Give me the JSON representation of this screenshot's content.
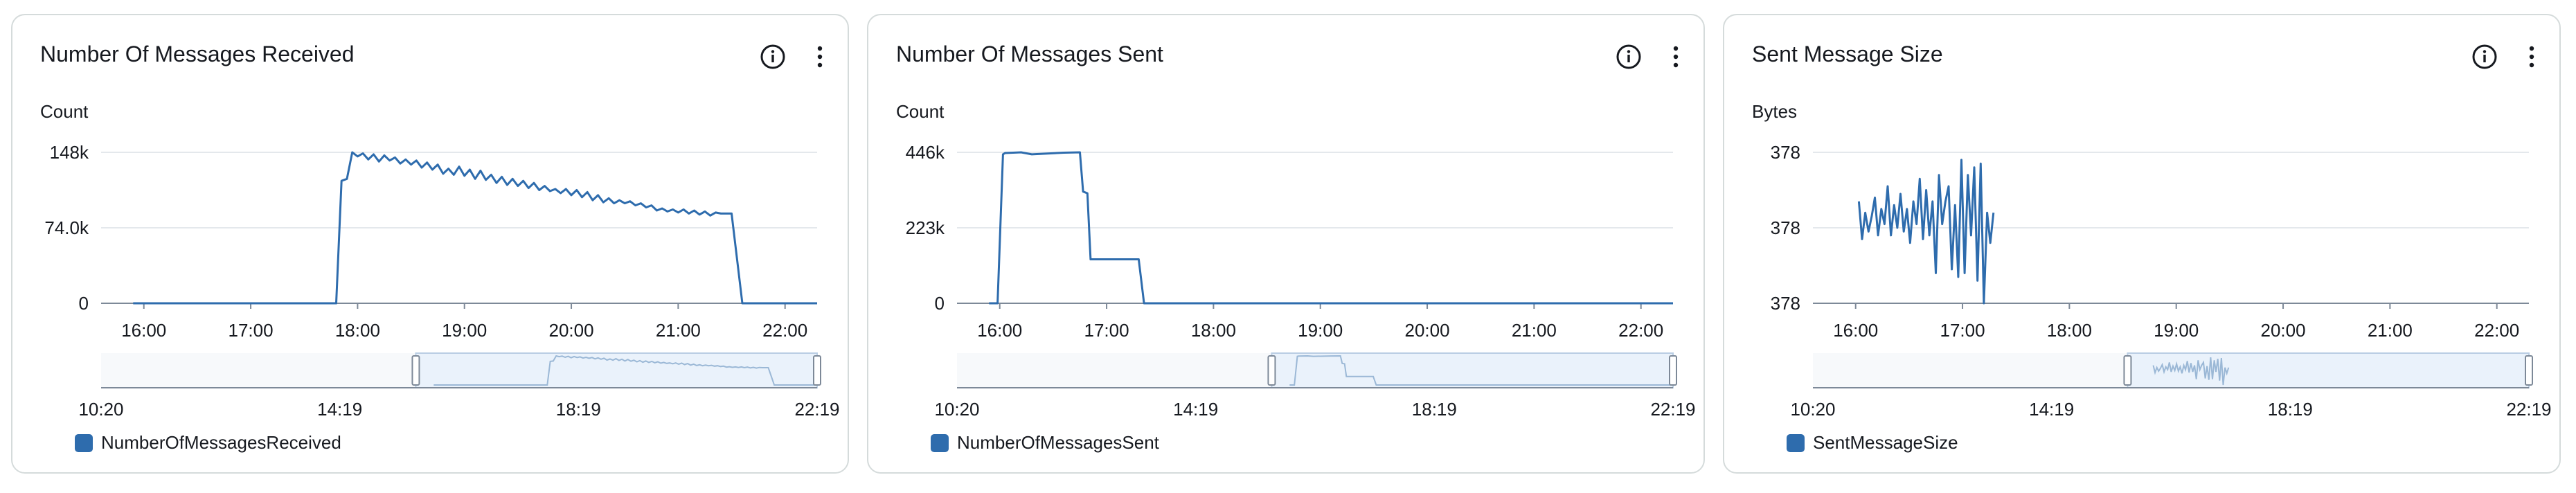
{
  "colors": {
    "series": "#2e6cad",
    "axis": "#7d8998",
    "grid": "#e4e8ec",
    "navigator_fill": "#eaf2fb",
    "navigator_border": "#b9cde3"
  },
  "panels": [
    {
      "title": "Number Of Messages Received",
      "info_icon": "info-circle-icon",
      "menu_icon": "vertical-ellipsis-icon",
      "legend": "NumberOfMessagesReceived"
    },
    {
      "title": "Number Of Messages Sent",
      "info_icon": "info-circle-icon",
      "menu_icon": "vertical-ellipsis-icon",
      "legend": "NumberOfMessagesSent"
    },
    {
      "title": "Sent Message Size",
      "info_icon": "info-circle-icon",
      "menu_icon": "vertical-ellipsis-icon",
      "legend": "SentMessageSize"
    }
  ],
  "chart_data": [
    {
      "type": "line",
      "ylabel": "Count",
      "ylim": [
        0,
        148000
      ],
      "y_ticks": [
        0,
        74000,
        148000
      ],
      "y_tick_labels": [
        "0",
        "74.0k",
        "148k"
      ],
      "xlim": [
        15.6,
        22.3
      ],
      "x_ticks": [
        16,
        17,
        18,
        19,
        20,
        21,
        22
      ],
      "x_tick_labels": [
        "16:00",
        "17:00",
        "18:00",
        "19:00",
        "20:00",
        "21:00",
        "22:00"
      ],
      "grid": true,
      "navigator": {
        "labels": [
          "10:20",
          "14:19",
          "18:19",
          "22:19"
        ],
        "range_labels": [
          10.333,
          22.317
        ],
        "window": [
          15.6,
          22.317
        ]
      },
      "series": [
        {
          "name": "NumberOfMessagesReceived",
          "x": [
            15.9,
            16.5,
            17.0,
            17.5,
            17.8,
            17.85,
            17.9,
            17.95,
            18.0,
            18.05,
            18.1,
            18.15,
            18.2,
            18.25,
            18.3,
            18.35,
            18.4,
            18.45,
            18.5,
            18.55,
            18.6,
            18.65,
            18.7,
            18.75,
            18.8,
            18.85,
            18.9,
            18.95,
            19.0,
            19.05,
            19.1,
            19.15,
            19.2,
            19.25,
            19.3,
            19.35,
            19.4,
            19.45,
            19.5,
            19.55,
            19.6,
            19.65,
            19.7,
            19.75,
            19.8,
            19.85,
            19.9,
            19.95,
            20.0,
            20.05,
            20.1,
            20.15,
            20.2,
            20.25,
            20.3,
            20.35,
            20.4,
            20.45,
            20.5,
            20.55,
            20.6,
            20.65,
            20.7,
            20.75,
            20.8,
            20.85,
            20.9,
            20.95,
            21.0,
            21.05,
            21.1,
            21.15,
            21.2,
            21.25,
            21.3,
            21.35,
            21.4,
            21.45,
            21.5,
            21.6,
            22.3
          ],
          "y": [
            0,
            0,
            0,
            0,
            0,
            120000,
            122000,
            148000,
            144000,
            147000,
            141000,
            146000,
            139000,
            145000,
            140000,
            143000,
            137000,
            141000,
            136000,
            140000,
            133000,
            138000,
            131000,
            136000,
            127000,
            132000,
            126000,
            134000,
            125000,
            131000,
            122000,
            130000,
            121000,
            126000,
            118000,
            124000,
            116000,
            122000,
            115000,
            120000,
            113000,
            118000,
            111000,
            115000,
            110000,
            112000,
            108000,
            112000,
            106000,
            111000,
            104000,
            109000,
            101000,
            106000,
            99000,
            103000,
            98000,
            101000,
            98000,
            100000,
            96000,
            98000,
            94000,
            96000,
            91000,
            93000,
            90000,
            92000,
            89000,
            92000,
            88000,
            91000,
            87000,
            90000,
            86000,
            89000,
            88000,
            88000,
            88000,
            0,
            0
          ]
        }
      ]
    },
    {
      "type": "line",
      "ylabel": "Count",
      "ylim": [
        0,
        446000
      ],
      "y_ticks": [
        0,
        223000,
        446000
      ],
      "y_tick_labels": [
        "0",
        "223k",
        "446k"
      ],
      "xlim": [
        15.6,
        22.3
      ],
      "x_ticks": [
        16,
        17,
        18,
        19,
        20,
        21,
        22
      ],
      "x_tick_labels": [
        "16:00",
        "17:00",
        "18:00",
        "19:00",
        "20:00",
        "21:00",
        "22:00"
      ],
      "grid": true,
      "navigator": {
        "labels": [
          "10:20",
          "14:19",
          "18:19",
          "22:19"
        ],
        "range_labels": [
          10.333,
          22.317
        ],
        "window": [
          15.6,
          22.317
        ]
      },
      "series": [
        {
          "name": "NumberOfMessagesSent",
          "x": [
            15.9,
            15.98,
            16.03,
            16.05,
            16.2,
            16.3,
            16.6,
            16.75,
            16.78,
            16.82,
            16.85,
            17.3,
            17.35,
            22.3
          ],
          "y": [
            0,
            0,
            440000,
            444000,
            446000,
            440000,
            445000,
            446000,
            330000,
            325000,
            130000,
            130000,
            0,
            0
          ]
        }
      ]
    },
    {
      "type": "line",
      "ylabel": "Bytes",
      "ylim": [
        0,
        2
      ],
      "y_ticks": [
        0,
        1,
        2
      ],
      "y_tick_labels": [
        "378",
        "378",
        "378"
      ],
      "xlim": [
        15.6,
        22.3
      ],
      "x_ticks": [
        16,
        17,
        18,
        19,
        20,
        21,
        22
      ],
      "x_tick_labels": [
        "16:00",
        "17:00",
        "18:00",
        "19:00",
        "20:00",
        "21:00",
        "22:00"
      ],
      "grid": true,
      "navigator": {
        "labels": [
          "10:20",
          "14:19",
          "18:19",
          "22:19"
        ],
        "range_labels": [
          10.333,
          22.317
        ],
        "window": [
          15.6,
          22.317
        ]
      },
      "series": [
        {
          "name": "SentMessageSize",
          "x": [
            16.03,
            16.06,
            16.09,
            16.12,
            16.15,
            16.18,
            16.21,
            16.24,
            16.27,
            16.3,
            16.33,
            16.36,
            16.39,
            16.42,
            16.45,
            16.48,
            16.51,
            16.54,
            16.57,
            16.6,
            16.63,
            16.66,
            16.69,
            16.72,
            16.75,
            16.78,
            16.81,
            16.84,
            16.87,
            16.9,
            16.93,
            16.96,
            16.99,
            17.02,
            17.05,
            17.08,
            17.11,
            17.14,
            17.17,
            17.2,
            17.23,
            17.26,
            17.29
          ],
          "y": [
            1.35,
            0.85,
            1.2,
            0.95,
            1.15,
            1.4,
            0.9,
            1.25,
            1.05,
            1.55,
            0.9,
            1.3,
            1.0,
            1.45,
            0.95,
            1.25,
            0.8,
            1.35,
            1.05,
            1.65,
            0.85,
            1.5,
            0.9,
            1.35,
            0.4,
            1.7,
            1.05,
            1.35,
            1.55,
            0.45,
            1.3,
            0.35,
            1.9,
            0.4,
            1.7,
            0.9,
            1.8,
            0.3,
            1.85,
            0.0,
            1.2,
            0.8,
            1.2
          ]
        }
      ]
    }
  ]
}
